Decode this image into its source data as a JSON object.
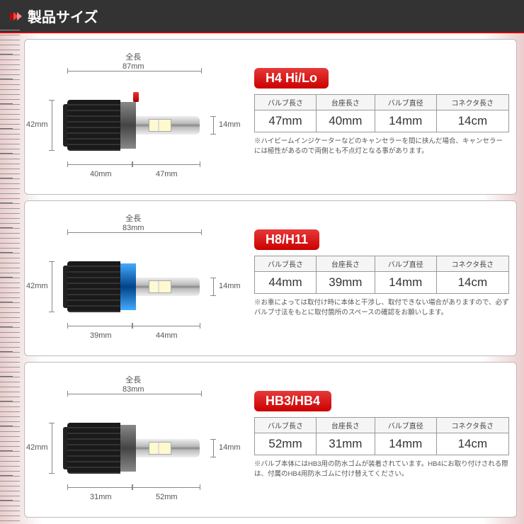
{
  "header": {
    "title": "製品サイズ"
  },
  "columns": [
    "バルブ長さ",
    "台座長さ",
    "バルブ直径",
    "コネクタ長さ"
  ],
  "products": [
    {
      "model": "H4 Hi/Lo",
      "total_label": "全長",
      "total": "87mm",
      "height": "42mm",
      "tip": "14mm",
      "seg1": "40mm",
      "seg2": "47mm",
      "values": [
        "47mm",
        "40mm",
        "14mm",
        "14cm"
      ],
      "note": "※ハイビームインジケーターなどのキャンセラーを間に挟んだ場合、キャンセラーには極性があるので両側とも不点灯となる事があります。",
      "collar_class": "",
      "show_notch": true
    },
    {
      "model": "H8/H11",
      "total_label": "全長",
      "total": "83mm",
      "height": "42mm",
      "tip": "14mm",
      "seg1": "39mm",
      "seg2": "44mm",
      "values": [
        "44mm",
        "39mm",
        "14mm",
        "14cm"
      ],
      "note": "※お車によっては取付け時に本体と干渉し、取付できない場合がありますので、必ずバルブ寸法をもとに取付箇所のスペースの確認をお願いします。",
      "collar_class": "blue",
      "show_notch": false
    },
    {
      "model": "HB3/HB4",
      "total_label": "全長",
      "total": "83mm",
      "height": "42mm",
      "tip": "14mm",
      "seg1": "31mm",
      "seg2": "52mm",
      "values": [
        "52mm",
        "31mm",
        "14mm",
        "14cm"
      ],
      "note": "※バルブ本体にはHB3用の防水ゴムが装着されています。HB4にお取り付けされる際は、付属のHB4用防水ゴムに付け替えてください。",
      "collar_class": "",
      "show_notch": false
    }
  ]
}
